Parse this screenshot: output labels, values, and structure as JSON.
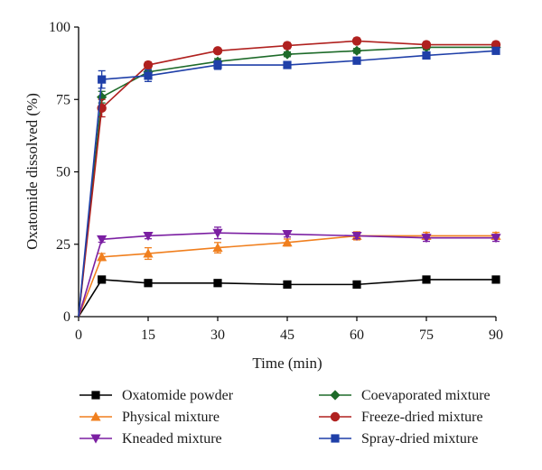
{
  "chart_data": {
    "type": "line",
    "xlabel": "Time (min)",
    "ylabel": "Oxatomide dissolved (%)",
    "xlim": [
      0,
      90
    ],
    "ylim": [
      0,
      100
    ],
    "xticks": [
      0,
      15,
      30,
      45,
      60,
      75,
      90
    ],
    "yticks": [
      0,
      25,
      50,
      75,
      100
    ],
    "x": [
      0,
      5,
      15,
      30,
      45,
      60,
      75,
      90
    ],
    "grid": false,
    "legend_position": "bottom",
    "series": [
      {
        "name": "Oxatomide powder",
        "color": "#000000",
        "marker": "square",
        "values": [
          0,
          12.8,
          11.6,
          11.6,
          11.1,
          11.1,
          12.8,
          12.8
        ],
        "errors": [
          0,
          0.8,
          0.8,
          0.8,
          0.8,
          0.8,
          0.8,
          0.8
        ]
      },
      {
        "name": "Physical mixture",
        "color": "#f07f1e",
        "marker": "triangle-up",
        "values": [
          0,
          20.6,
          21.8,
          23.8,
          25.6,
          27.9,
          27.9,
          27.9
        ],
        "errors": [
          0,
          1.2,
          2.0,
          1.8,
          1.2,
          1.4,
          1.2,
          1.2
        ]
      },
      {
        "name": "Kneaded mixture",
        "color": "#7b1fa2",
        "marker": "triangle-down",
        "values": [
          0,
          26.7,
          27.9,
          28.9,
          28.5,
          27.9,
          27.2,
          27.2
        ],
        "errors": [
          0,
          1.0,
          1.0,
          2.0,
          1.0,
          1.0,
          1.2,
          1.2
        ]
      },
      {
        "name": "Coevaporated mixture",
        "color": "#1e6b2a",
        "marker": "diamond",
        "values": [
          0,
          75.8,
          84.5,
          88.1,
          90.6,
          91.8,
          93.0,
          93.0
        ],
        "errors": [
          0,
          2.0,
          1.2,
          1.0,
          0.8,
          0.8,
          0.8,
          0.8
        ]
      },
      {
        "name": "Freeze-dried mixture",
        "color": "#b0211f",
        "marker": "circle",
        "values": [
          0,
          72.0,
          86.9,
          91.8,
          93.6,
          95.2,
          93.9,
          93.9
        ],
        "errors": [
          0,
          3.0,
          1.0,
          0.8,
          1.0,
          1.0,
          1.0,
          1.0
        ]
      },
      {
        "name": "Spray-dried mixture",
        "color": "#1f3fa8",
        "marker": "square",
        "values": [
          0,
          81.9,
          83.2,
          86.9,
          86.9,
          88.4,
          90.2,
          91.8
        ],
        "errors": [
          0,
          3.0,
          2.0,
          1.5,
          1.0,
          1.0,
          1.0,
          1.0
        ]
      }
    ]
  }
}
